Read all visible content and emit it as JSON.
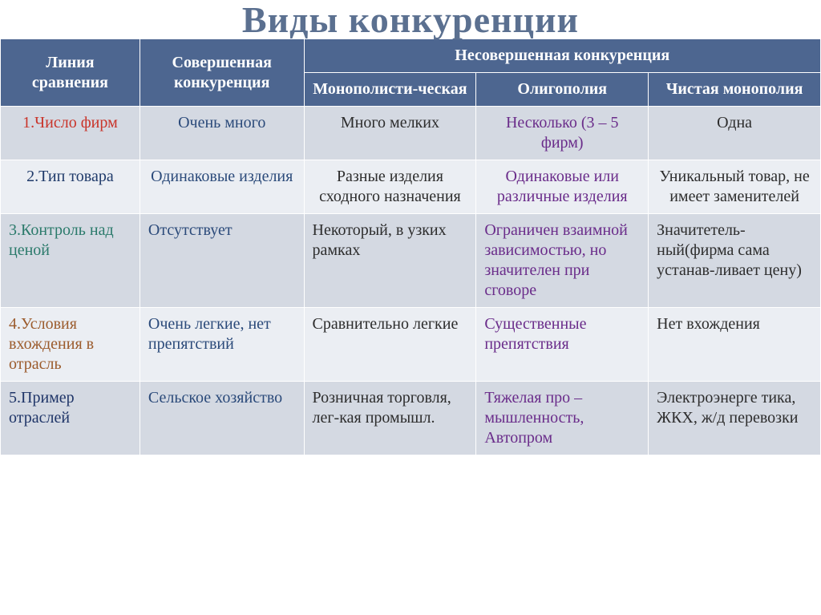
{
  "title": "Виды  конкуренции",
  "headers": {
    "comparison": "Линия сравнения",
    "perfect": "Совершенная конкуренция",
    "imperfect": "Несовершенная конкуренция",
    "monopolistic": "Монополисти-ческая",
    "oligopoly": "Олигополия",
    "pure_monopoly": "Чистая монополия"
  },
  "rows": [
    {
      "criteria": "1.Число фирм",
      "criteria_class": "criteria-red",
      "perfect": "Очень много",
      "mono": "Много мелких",
      "oligo": "Несколько (3 – 5 фирм)",
      "pure": "Одна",
      "center": true
    },
    {
      "criteria": "2.Тип товара",
      "criteria_class": "criteria-blue",
      "perfect": "Одинаковые изделия",
      "mono": "Разные изделия сходного назначения",
      "oligo": "Одинаковые или различные изделия",
      "pure": "Уникальный товар, не имеет заменителей",
      "center": true
    },
    {
      "criteria": "3.Контроль над ценой",
      "criteria_class": "criteria-teal",
      "perfect": "Отсутствует",
      "mono": "Некоторый, в узких рамках",
      "oligo": "Ограничен взаимной зависимостью, но значителен при сговоре",
      "pure": "Значитетель-ный(фирма сама устанав-ливает цену)",
      "center": false
    },
    {
      "criteria": "4.Условия вхождения в отрасль",
      "criteria_class": "criteria-brown",
      "perfect": "Очень легкие, нет препятствий",
      "mono": "Сравнительно легкие",
      "oligo": "Существенные препятствия",
      "pure": "Нет вхождения",
      "center": false
    },
    {
      "criteria": "5.Пример отраслей",
      "criteria_class": "criteria-navy",
      "perfect": "Сельское хозяйство",
      "mono": "Розничная торговля, лег-кая промышл.",
      "oligo": "Тяжелая про –мышленность, Автопром",
      "pure": "Электроэнерге тика, ЖКХ, ж/д перевозки",
      "center": false
    }
  ],
  "colors": {
    "header_bg": "#4d6690",
    "title_color": "#5b7090",
    "row_odd": "#d4d9e2",
    "row_even": "#ebeef3",
    "perfect_text": "#2b4a7a",
    "oligo_text": "#6a2c8a"
  }
}
